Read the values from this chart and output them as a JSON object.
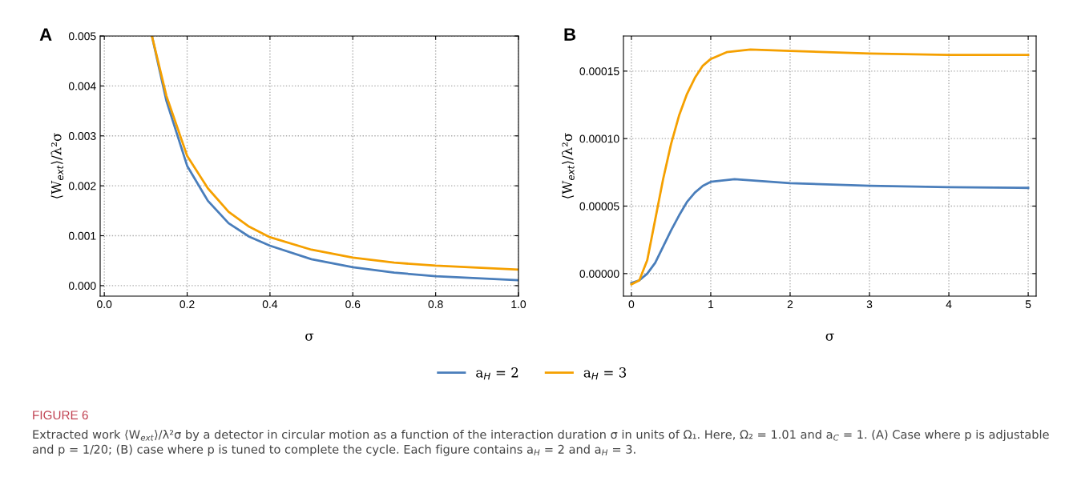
{
  "chart_data": [
    {
      "type": "line",
      "title": "A",
      "xlabel": "σ",
      "ylabel": "⟨W$_{ext}$⟩/λ²σ",
      "xlim": [
        -0.01,
        1.0
      ],
      "ylim": [
        -0.00021,
        0.005
      ],
      "xticks": [
        {
          "value": 0,
          "label": "0.0"
        },
        0.2,
        0.4,
        0.6,
        0.8,
        {
          "value": 1,
          "label": "1.0"
        }
      ],
      "yticks": [
        {
          "value": 0,
          "label": "0.000"
        },
        0.001,
        0.002,
        0.003,
        0.004,
        0.005
      ],
      "grid": true,
      "legend": "bottom",
      "series": [
        {
          "name": "a$_{H}$ = 2",
          "color": "#4a7ebb",
          "x": [
            0.115,
            0.15,
            0.2,
            0.25,
            0.3,
            0.35,
            0.4,
            0.5,
            0.6,
            0.7,
            0.8,
            0.9,
            1.0
          ],
          "values": [
            0.005,
            0.0037,
            0.0024,
            0.0017,
            0.00125,
            0.00098,
            0.0008,
            0.00053,
            0.00037,
            0.00026,
            0.00019,
            0.00015,
            0.00011
          ]
        },
        {
          "name": "a$_{H}$ = 3",
          "color": "#f5a000",
          "x": [
            0.115,
            0.15,
            0.2,
            0.25,
            0.3,
            0.35,
            0.4,
            0.5,
            0.6,
            0.7,
            0.8,
            0.9,
            1.0
          ],
          "values": [
            0.005,
            0.0038,
            0.0026,
            0.00195,
            0.00148,
            0.00118,
            0.00097,
            0.00072,
            0.00056,
            0.00046,
            0.0004,
            0.00036,
            0.00032
          ]
        }
      ],
      "annotations": [
        "FIGURE 6",
        "Extracted work ⟨W$_{ext}$⟩/λ²σ by a detector in circular motion as a function of the interaction duration σ in units of Ω₁. Here, Ω₂ = 1.01 and a$_{C}$ = 1. (A) Case where p is adjustable and p = 1/20; (B) case where p is tuned to complete the cycle. Each figure contains a$_{H}$ = 2 and a$_{H}$ = 3."
      ]
    },
    {
      "type": "line",
      "title": "B",
      "xlabel": "σ",
      "ylabel": "⟨W$_{ext}$⟩/λ²σ",
      "xlim": [
        -0.1,
        5.1
      ],
      "ylim": [
        -1.67e-05,
        0.000176
      ],
      "xticks": [
        0,
        1,
        2,
        3,
        4,
        5
      ],
      "yticks": [
        {
          "value": 0,
          "label": "0.00000"
        },
        {
          "value": 5e-05,
          "label": "0.00005"
        },
        {
          "value": 0.0001,
          "label": "0.00010"
        },
        {
          "value": 0.00015,
          "label": "0.00015"
        }
      ],
      "grid": true,
      "legend": "bottom",
      "series": [
        {
          "name": "a$_{H}$ = 2",
          "color": "#4a7ebb",
          "x": [
            0,
            0.1,
            0.2,
            0.3,
            0.4,
            0.5,
            0.6,
            0.7,
            0.8,
            0.9,
            1.0,
            1.3,
            2,
            3,
            4,
            5
          ],
          "values": [
            -7e-06,
            -5e-06,
            0.0,
            8e-06,
            2e-05,
            3.2e-05,
            4.3e-05,
            5.3e-05,
            6e-05,
            6.5e-05,
            6.8e-05,
            7e-05,
            6.7e-05,
            6.5e-05,
            6.4e-05,
            6.35e-05
          ]
        },
        {
          "name": "a$_{H}$ = 3",
          "color": "#f5a000",
          "x": [
            0,
            0.1,
            0.2,
            0.3,
            0.4,
            0.5,
            0.6,
            0.7,
            0.8,
            0.9,
            1.0,
            1.2,
            1.5,
            2,
            3,
            4,
            5
          ],
          "values": [
            -8e-06,
            -5e-06,
            1e-05,
            4e-05,
            7e-05,
            9.6e-05,
            0.000117,
            0.000133,
            0.000145,
            0.000154,
            0.000159,
            0.000164,
            0.000166,
            0.000165,
            0.000163,
            0.000162,
            0.000162
          ]
        }
      ]
    }
  ]
}
